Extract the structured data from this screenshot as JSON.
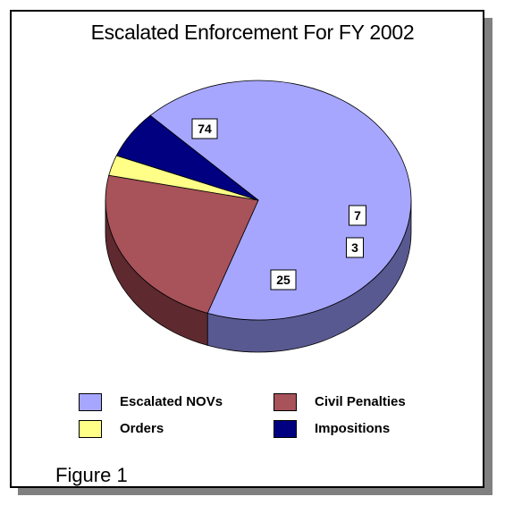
{
  "caption": "Figure 1",
  "chart_data": {
    "type": "pie",
    "style": "3d",
    "title": "Escalated Enforcement For FY 2002",
    "legend_position": "bottom",
    "slices": [
      {
        "label": "Escalated NOVs",
        "value": 74,
        "color": "#a6a6ff",
        "side_color": "#595991"
      },
      {
        "label": "Civil Penalties",
        "value": 25,
        "color": "#a8525a",
        "side_color": "#5e2a2f"
      },
      {
        "label": "Orders",
        "value": 3,
        "color": "#ffff88",
        "side_color": "#8e8e46"
      },
      {
        "label": "Impositions",
        "value": 7,
        "color": "#000080",
        "side_color": "#000046"
      }
    ]
  }
}
